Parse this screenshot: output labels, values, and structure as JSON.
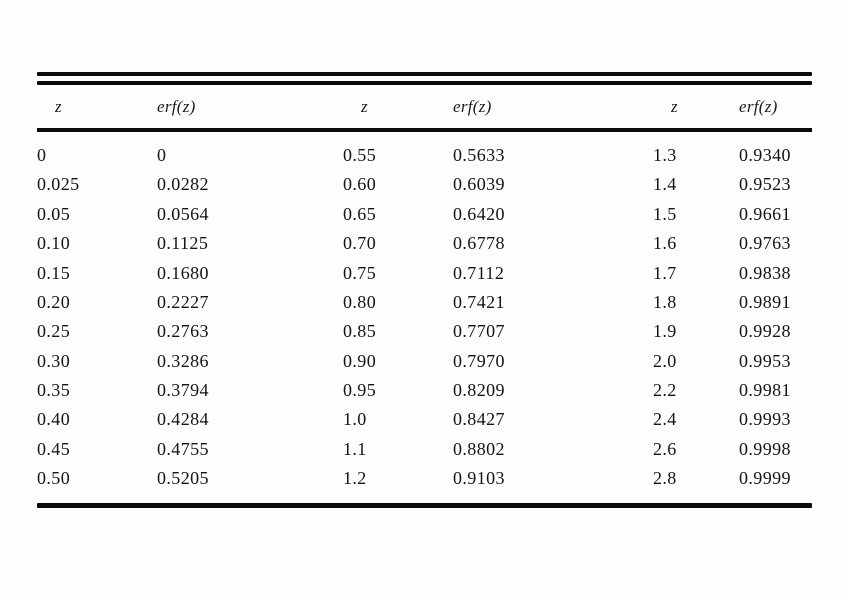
{
  "document": {
    "background_color": "#fdfdfc",
    "rule_color": "#0b0b0b",
    "text_color": "#141414"
  },
  "table": {
    "headers": [
      "z",
      "erf(z)",
      "z",
      "erf(z)",
      "z",
      "erf(z)"
    ],
    "rows": [
      [
        "0",
        "0",
        "0.55",
        "0.5633",
        "1.3",
        "0.9340"
      ],
      [
        "0.025",
        "0.0282",
        "0.60",
        "0.6039",
        "1.4",
        "0.9523"
      ],
      [
        "0.05",
        "0.0564",
        "0.65",
        "0.6420",
        "1.5",
        "0.9661"
      ],
      [
        "0.10",
        "0.1125",
        "0.70",
        "0.6778",
        "1.6",
        "0.9763"
      ],
      [
        "0.15",
        "0.1680",
        "0.75",
        "0.7112",
        "1.7",
        "0.9838"
      ],
      [
        "0.20",
        "0.2227",
        "0.80",
        "0.7421",
        "1.8",
        "0.9891"
      ],
      [
        "0.25",
        "0.2763",
        "0.85",
        "0.7707",
        "1.9",
        "0.9928"
      ],
      [
        "0.30",
        "0.3286",
        "0.90",
        "0.7970",
        "2.0",
        "0.9953"
      ],
      [
        "0.35",
        "0.3794",
        "0.95",
        "0.8209",
        "2.2",
        "0.9981"
      ],
      [
        "0.40",
        "0.4284",
        "1.0",
        "0.8427",
        "2.4",
        "0.9993"
      ],
      [
        "0.45",
        "0.4755",
        "1.1",
        "0.8802",
        "2.6",
        "0.9998"
      ],
      [
        "0.50",
        "0.5205",
        "1.2",
        "0.9103",
        "2.8",
        "0.9999"
      ]
    ]
  }
}
